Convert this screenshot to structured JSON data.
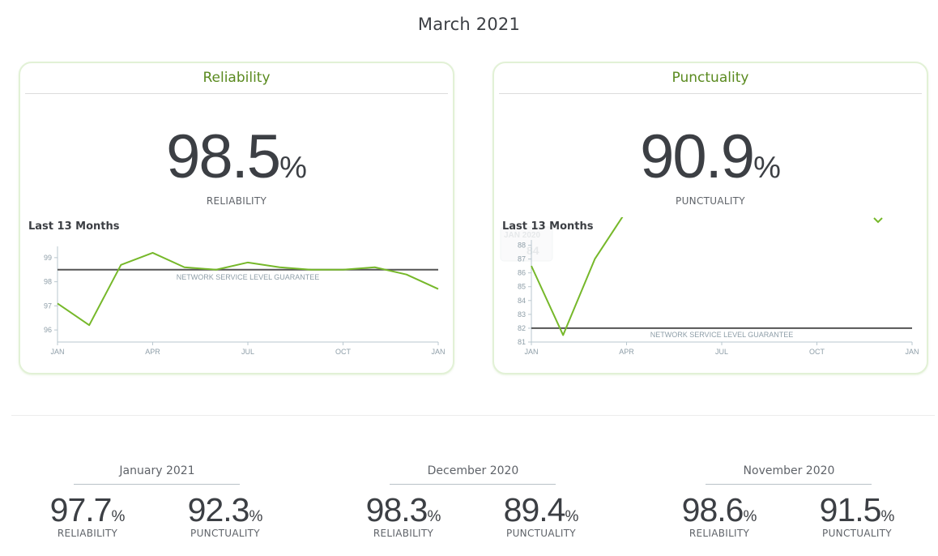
{
  "page_title": "March 2021",
  "cards": {
    "reliability": {
      "title": "Reliability",
      "value": "98.5",
      "unit": "%",
      "label": "RELIABILITY",
      "chart_label": "Last 13 Months"
    },
    "punctuality": {
      "title": "Punctuality",
      "value": "90.9",
      "unit": "%",
      "label": "PUNCTUALITY",
      "chart_label": "Last 13 Months",
      "tooltip_month": "JAN 2020",
      "tooltip_value": "84"
    }
  },
  "accent_color": "#76b82a",
  "guarantee_color": "#555555",
  "chart_data": [
    {
      "type": "line",
      "x_ticks": [
        "JAN",
        "APR",
        "JUL",
        "OCT",
        "JAN"
      ],
      "y_ticks": [
        "96",
        "97",
        "98",
        "99"
      ],
      "ylim": [
        95.5,
        99.5
      ],
      "series": [
        {
          "values": [
            97.1,
            96.2,
            98.7,
            99.2,
            98.6,
            98.5,
            98.8,
            98.6,
            98.5,
            98.5,
            98.6,
            98.3,
            97.7
          ]
        }
      ],
      "guarantee": {
        "label": "NETWORK SERVICE LEVEL GUARANTEE",
        "value": 98.5
      }
    },
    {
      "type": "line",
      "x_ticks": [
        "JAN",
        "APR",
        "JUL",
        "OCT",
        "JAN"
      ],
      "y_ticks": [
        "81",
        "82",
        "83",
        "84",
        "85",
        "86",
        "87",
        "88"
      ],
      "ylim": [
        81,
        88.5
      ],
      "series": [
        {
          "values": [
            86.5,
            81.5,
            87.0,
            90.5
          ]
        }
      ],
      "guarantee": {
        "label": "NETWORK SERVICE LEVEL GUARANTEE",
        "value": 82
      }
    }
  ],
  "history": [
    {
      "month": "January 2021",
      "reliability": "97.7",
      "punctuality": "92.3",
      "unit": "%",
      "rel_label": "RELIABILITY",
      "pun_label": "PUNCTUALITY"
    },
    {
      "month": "December 2020",
      "reliability": "98.3",
      "punctuality": "89.4",
      "unit": "%",
      "rel_label": "RELIABILITY",
      "pun_label": "PUNCTUALITY"
    },
    {
      "month": "November 2020",
      "reliability": "98.6",
      "punctuality": "91.5",
      "unit": "%",
      "rel_label": "RELIABILITY",
      "pun_label": "PUNCTUALITY"
    }
  ]
}
